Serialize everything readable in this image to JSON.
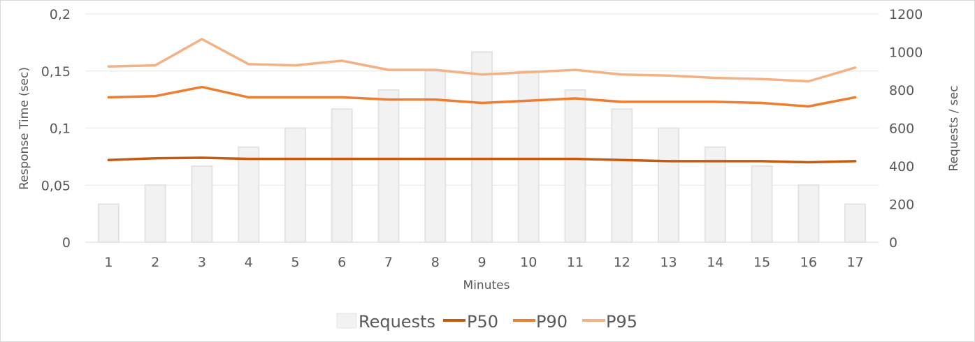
{
  "chart_data": {
    "type": "bar+line",
    "xlabel": "Minutes",
    "ylabel": "Response Time (sec)",
    "y2label": "Requests / sec",
    "categories": [
      "1",
      "2",
      "3",
      "4",
      "5",
      "6",
      "7",
      "8",
      "9",
      "10",
      "11",
      "12",
      "13",
      "14",
      "15",
      "16",
      "17"
    ],
    "ylim": [
      0,
      0.2
    ],
    "y_ticks": [
      "0",
      "0,05",
      "0,1",
      "0,15",
      "0,2"
    ],
    "y2lim": [
      0,
      1200
    ],
    "y2_ticks": [
      "0",
      "200",
      "400",
      "600",
      "800",
      "1000",
      "1200"
    ],
    "bars": {
      "name": "Requests",
      "axis": "right",
      "values": [
        200,
        300,
        400,
        500,
        600,
        700,
        800,
        900,
        1000,
        900,
        800,
        700,
        600,
        500,
        400,
        300,
        200
      ]
    },
    "series": [
      {
        "name": "P50",
        "axis": "left",
        "color": "#c55a11",
        "values": [
          0.072,
          0.0735,
          0.074,
          0.073,
          0.073,
          0.073,
          0.073,
          0.073,
          0.073,
          0.073,
          0.073,
          0.072,
          0.071,
          0.071,
          0.071,
          0.07,
          0.071
        ]
      },
      {
        "name": "P90",
        "axis": "left",
        "color": "#ed7d31",
        "values": [
          0.127,
          0.128,
          0.136,
          0.127,
          0.127,
          0.127,
          0.125,
          0.125,
          0.122,
          0.124,
          0.126,
          0.123,
          0.123,
          0.123,
          0.122,
          0.119,
          0.127
        ]
      },
      {
        "name": "P95",
        "axis": "left",
        "color": "#f4b183",
        "values": [
          0.154,
          0.155,
          0.178,
          0.156,
          0.155,
          0.159,
          0.151,
          0.151,
          0.147,
          0.149,
          0.151,
          0.147,
          0.146,
          0.144,
          0.143,
          0.141,
          0.153
        ]
      }
    ],
    "bar_color": "#f2f2f2",
    "bar_edge_color": "#e3e3e3",
    "grid": true,
    "legend": "bottom"
  }
}
